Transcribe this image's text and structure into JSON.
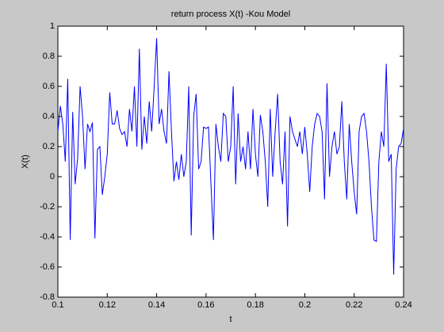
{
  "chart_data": {
    "type": "line",
    "title": "return process X(t) -Kou Model",
    "xlabel": "t",
    "ylabel": "X(t)",
    "color": "#0000ff",
    "x": [
      0.1,
      0.101,
      0.102,
      0.103,
      0.104,
      0.105,
      0.106,
      0.107,
      0.108,
      0.109,
      0.11,
      0.111,
      0.112,
      0.113,
      0.114,
      0.115,
      0.116,
      0.117,
      0.118,
      0.119,
      0.12,
      0.121,
      0.122,
      0.123,
      0.124,
      0.125,
      0.126,
      0.127,
      0.128,
      0.129,
      0.13,
      0.131,
      0.132,
      0.133,
      0.134,
      0.135,
      0.136,
      0.137,
      0.138,
      0.139,
      0.14,
      0.141,
      0.142,
      0.143,
      0.144,
      0.145,
      0.146,
      0.147,
      0.148,
      0.149,
      0.15,
      0.151,
      0.152,
      0.153,
      0.154,
      0.155,
      0.156,
      0.157,
      0.158,
      0.159,
      0.16,
      0.161,
      0.162,
      0.163,
      0.164,
      0.165,
      0.166,
      0.167,
      0.168,
      0.169,
      0.17,
      0.171,
      0.172,
      0.173,
      0.174,
      0.175,
      0.176,
      0.177,
      0.178,
      0.179,
      0.18,
      0.181,
      0.182,
      0.183,
      0.184,
      0.185,
      0.186,
      0.187,
      0.188,
      0.189,
      0.19,
      0.191,
      0.192,
      0.193,
      0.194,
      0.195,
      0.196,
      0.197,
      0.198,
      0.199,
      0.2,
      0.201,
      0.202,
      0.203,
      0.204,
      0.205,
      0.206,
      0.207,
      0.208,
      0.209,
      0.21,
      0.211,
      0.212,
      0.213,
      0.214,
      0.215,
      0.216,
      0.217,
      0.218,
      0.219,
      0.22,
      0.221,
      0.222,
      0.223,
      0.224,
      0.225,
      0.226,
      0.227,
      0.228,
      0.229,
      0.23,
      0.231,
      0.232,
      0.233,
      0.234,
      0.235,
      0.236,
      0.237,
      0.238,
      0.239,
      0.24
    ],
    "values": [
      0.3,
      0.47,
      0.35,
      0.1,
      0.65,
      -0.42,
      0.43,
      -0.05,
      0.12,
      0.6,
      0.4,
      0.05,
      0.35,
      0.3,
      0.36,
      -0.41,
      0.18,
      0.2,
      -0.12,
      0.0,
      0.15,
      0.56,
      0.35,
      0.35,
      0.44,
      0.32,
      0.28,
      0.3,
      0.2,
      0.45,
      0.3,
      0.6,
      0.2,
      0.85,
      0.18,
      0.4,
      0.22,
      0.5,
      0.3,
      0.6,
      0.92,
      0.35,
      0.45,
      0.3,
      0.22,
      0.7,
      0.3,
      -0.03,
      0.1,
      -0.02,
      0.15,
      0.0,
      0.1,
      0.6,
      -0.39,
      0.4,
      0.55,
      0.05,
      0.1,
      0.33,
      0.32,
      0.33,
      -0.05,
      -0.42,
      0.35,
      0.2,
      0.1,
      0.42,
      0.4,
      0.1,
      0.2,
      0.6,
      -0.05,
      0.42,
      0.1,
      0.2,
      0.05,
      0.3,
      0.05,
      0.45,
      0.15,
      0.0,
      0.41,
      0.3,
      0.1,
      -0.2,
      0.45,
      0.0,
      0.3,
      0.55,
      0.1,
      -0.05,
      0.3,
      -0.33,
      0.4,
      0.3,
      0.25,
      0.2,
      0.3,
      0.15,
      0.33,
      0.15,
      -0.1,
      0.2,
      0.35,
      0.42,
      0.4,
      0.3,
      -0.15,
      0.62,
      0.0,
      0.2,
      0.3,
      0.15,
      0.2,
      0.5,
      0.1,
      -0.15,
      0.35,
      0.1,
      -0.1,
      -0.25,
      0.3,
      0.4,
      0.42,
      0.3,
      0.1,
      -0.2,
      -0.42,
      -0.43,
      0.1,
      0.3,
      0.2,
      0.75,
      0.1,
      0.15,
      -0.65,
      0.05,
      0.2,
      0.22,
      0.32
    ],
    "xlim": [
      0.1,
      0.24
    ],
    "xticks": [
      0.1,
      0.12,
      0.14,
      0.16,
      0.18,
      0.2,
      0.22,
      0.24
    ],
    "ylim": [
      -0.8,
      1
    ],
    "yticks": [
      -0.8,
      -0.6,
      -0.4,
      -0.2,
      0,
      0.2,
      0.4,
      0.6,
      0.8,
      1
    ]
  }
}
